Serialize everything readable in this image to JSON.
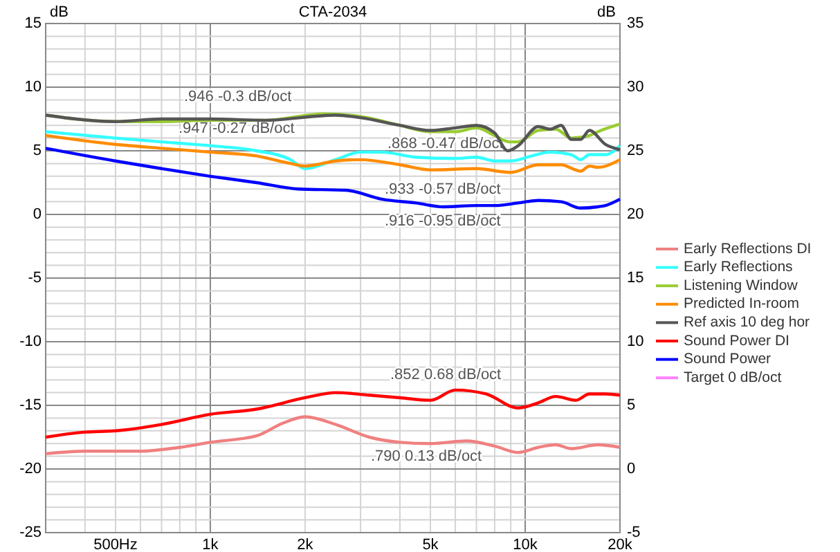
{
  "chart_data": {
    "type": "line",
    "title": "CTA-2034",
    "ylabel": "dB",
    "y2label": "dB",
    "xlim": [
      300,
      20000
    ],
    "ylim": [
      -25,
      15
    ],
    "y2lim": [
      -5,
      35
    ],
    "log": "x",
    "grid": true,
    "legend": "right",
    "xticks": [
      {
        "value": 300,
        "label": null
      },
      {
        "value": 400,
        "label": null
      },
      {
        "value": 500,
        "label": "500Hz"
      },
      {
        "value": 600,
        "label": null
      },
      {
        "value": 700,
        "label": null
      },
      {
        "value": 800,
        "label": null
      },
      {
        "value": 900,
        "label": null
      },
      {
        "value": 1000,
        "label": "1k"
      },
      {
        "value": 2000,
        "label": "2k"
      },
      {
        "value": 3000,
        "label": null
      },
      {
        "value": 4000,
        "label": null
      },
      {
        "value": 5000,
        "label": "5k"
      },
      {
        "value": 6000,
        "label": null
      },
      {
        "value": 7000,
        "label": null
      },
      {
        "value": 8000,
        "label": null
      },
      {
        "value": 9000,
        "label": null
      },
      {
        "value": 10000,
        "label": "10k"
      },
      {
        "value": 20000,
        "label": "20k"
      }
    ],
    "yticks": [
      -25,
      {
        "value": -24,
        "label": null
      },
      {
        "value": -23,
        "label": null
      },
      {
        "value": -22,
        "label": null
      },
      {
        "value": -21,
        "label": null
      },
      -20,
      {
        "value": -19,
        "label": null
      },
      {
        "value": -18,
        "label": null
      },
      {
        "value": -17,
        "label": null
      },
      {
        "value": -16,
        "label": null
      },
      -15,
      {
        "value": -14,
        "label": null
      },
      {
        "value": -13,
        "label": null
      },
      {
        "value": -12,
        "label": null
      },
      {
        "value": -11,
        "label": null
      },
      -10,
      {
        "value": -9,
        "label": null
      },
      {
        "value": -8,
        "label": null
      },
      {
        "value": -7,
        "label": null
      },
      {
        "value": -6,
        "label": null
      },
      -5,
      {
        "value": -4,
        "label": null
      },
      {
        "value": -3,
        "label": null
      },
      {
        "value": -2,
        "label": null
      },
      {
        "value": -1,
        "label": null
      },
      0,
      {
        "value": 1,
        "label": null
      },
      {
        "value": 2,
        "label": null
      },
      {
        "value": 3,
        "label": null
      },
      {
        "value": 4,
        "label": null
      },
      5,
      {
        "value": 6,
        "label": null
      },
      {
        "value": 7,
        "label": null
      },
      {
        "value": 8,
        "label": null
      },
      {
        "value": 9,
        "label": null
      },
      10,
      {
        "value": 11,
        "label": null
      },
      {
        "value": 12,
        "label": null
      },
      {
        "value": 13,
        "label": null
      },
      {
        "value": 14,
        "label": null
      },
      15
    ],
    "y2ticks": [
      -5,
      0,
      5,
      10,
      15,
      20,
      25,
      30,
      35
    ],
    "series": [
      {
        "name": "Early Reflections DI",
        "color": "#f08080",
        "axis": "y2",
        "x": [
          300,
          400,
          600,
          800,
          1000,
          1400,
          1700,
          2000,
          2500,
          3200,
          4000,
          5000,
          6500,
          8000,
          9500,
          11000,
          12500,
          14000,
          17000,
          20000
        ],
        "values": [
          1.2,
          1.4,
          1.4,
          1.7,
          2.1,
          2.6,
          3.6,
          4.1,
          3.5,
          2.5,
          2.1,
          2.0,
          2.2,
          1.8,
          1.3,
          1.7,
          1.9,
          1.6,
          1.9,
          1.7
        ]
      },
      {
        "name": "Early Reflections",
        "color": "#33ffff",
        "x": [
          300,
          500,
          700,
          1000,
          1400,
          1800,
          2000,
          2500,
          3000,
          3500,
          4500,
          6000,
          7000,
          8000,
          9000,
          10500,
          12000,
          14000,
          15000,
          16000,
          18000,
          20000
        ],
        "values": [
          6.5,
          6.0,
          5.7,
          5.4,
          5.0,
          4.3,
          3.6,
          4.3,
          4.9,
          4.9,
          4.5,
          4.4,
          4.5,
          4.2,
          4.2,
          4.6,
          4.9,
          4.7,
          4.3,
          4.7,
          4.7,
          5.4
        ]
      },
      {
        "name": "Listening Window",
        "color": "#99cc33",
        "x": [
          300,
          500,
          700,
          1000,
          1500,
          2300,
          3000,
          4000,
          5000,
          6000,
          7000,
          8000,
          8900,
          9500,
          11000,
          12500,
          14000,
          16000,
          17000,
          20000
        ],
        "values": [
          7.8,
          7.3,
          7.3,
          7.4,
          7.4,
          7.9,
          7.7,
          7.0,
          6.5,
          6.5,
          6.8,
          6.2,
          5.7,
          5.7,
          6.6,
          6.7,
          6.0,
          6.2,
          6.5,
          7.1
        ]
      },
      {
        "name": "Predicted In-room",
        "color": "#ff8c00",
        "x": [
          300,
          500,
          700,
          1000,
          1400,
          1800,
          2000,
          2500,
          3000,
          4000,
          5000,
          7000,
          9000,
          11000,
          13000,
          15000,
          16000,
          17000,
          20000
        ],
        "values": [
          6.2,
          5.5,
          5.2,
          4.9,
          4.6,
          4.0,
          3.8,
          4.2,
          4.3,
          3.9,
          3.5,
          3.6,
          3.3,
          3.9,
          3.9,
          3.4,
          3.8,
          3.7,
          4.3
        ]
      },
      {
        "name": "Ref axis 10 deg hor",
        "color": "#555555",
        "x": [
          300,
          500,
          700,
          1000,
          1500,
          2500,
          3000,
          4000,
          5000,
          6000,
          7000,
          8000,
          8800,
          9500,
          11000,
          12000,
          13000,
          14000,
          15000,
          16000,
          18000,
          20000
        ],
        "values": [
          7.8,
          7.3,
          7.5,
          7.5,
          7.4,
          7.8,
          7.6,
          7.0,
          6.6,
          6.8,
          7.0,
          6.4,
          5.0,
          5.4,
          6.9,
          6.7,
          7.0,
          5.9,
          5.9,
          6.6,
          5.5,
          5.1
        ]
      },
      {
        "name": "Sound Power DI",
        "color": "#ff0000",
        "axis": "y2",
        "x": [
          300,
          400,
          500,
          700,
          1000,
          1400,
          2000,
          2500,
          3200,
          4000,
          5000,
          6000,
          7500,
          9500,
          11000,
          12500,
          14500,
          16000,
          18000,
          20000
        ],
        "values": [
          2.5,
          2.9,
          3.0,
          3.5,
          4.3,
          4.7,
          5.6,
          6.0,
          5.8,
          5.6,
          5.4,
          6.2,
          5.9,
          4.8,
          5.2,
          5.7,
          5.4,
          5.9,
          5.9,
          5.8
        ]
      },
      {
        "name": "Sound Power",
        "color": "#0000ff",
        "x": [
          300,
          500,
          700,
          1000,
          1400,
          1900,
          2700,
          3500,
          4500,
          5500,
          7000,
          8000,
          9500,
          11000,
          13000,
          15000,
          17000,
          18000,
          20000
        ],
        "values": [
          5.2,
          4.2,
          3.6,
          3.0,
          2.5,
          2.0,
          1.9,
          1.2,
          0.9,
          0.6,
          0.7,
          0.7,
          0.9,
          1.1,
          1.0,
          0.5,
          0.6,
          0.7,
          1.2
        ]
      },
      {
        "name": "Target 0 dB/oct",
        "color": "#ff80ff"
      }
    ],
    "annotations": [
      ".946  -0.3 dB/oct",
      ".947  -0.27 dB/oct",
      ".868  -0.47 dB/oct",
      ".933  -0.57 dB/oct",
      ".916  -0.95 dB/oct",
      ".852  0.68 dB/oct",
      ".790  0.13 dB/oct"
    ]
  }
}
